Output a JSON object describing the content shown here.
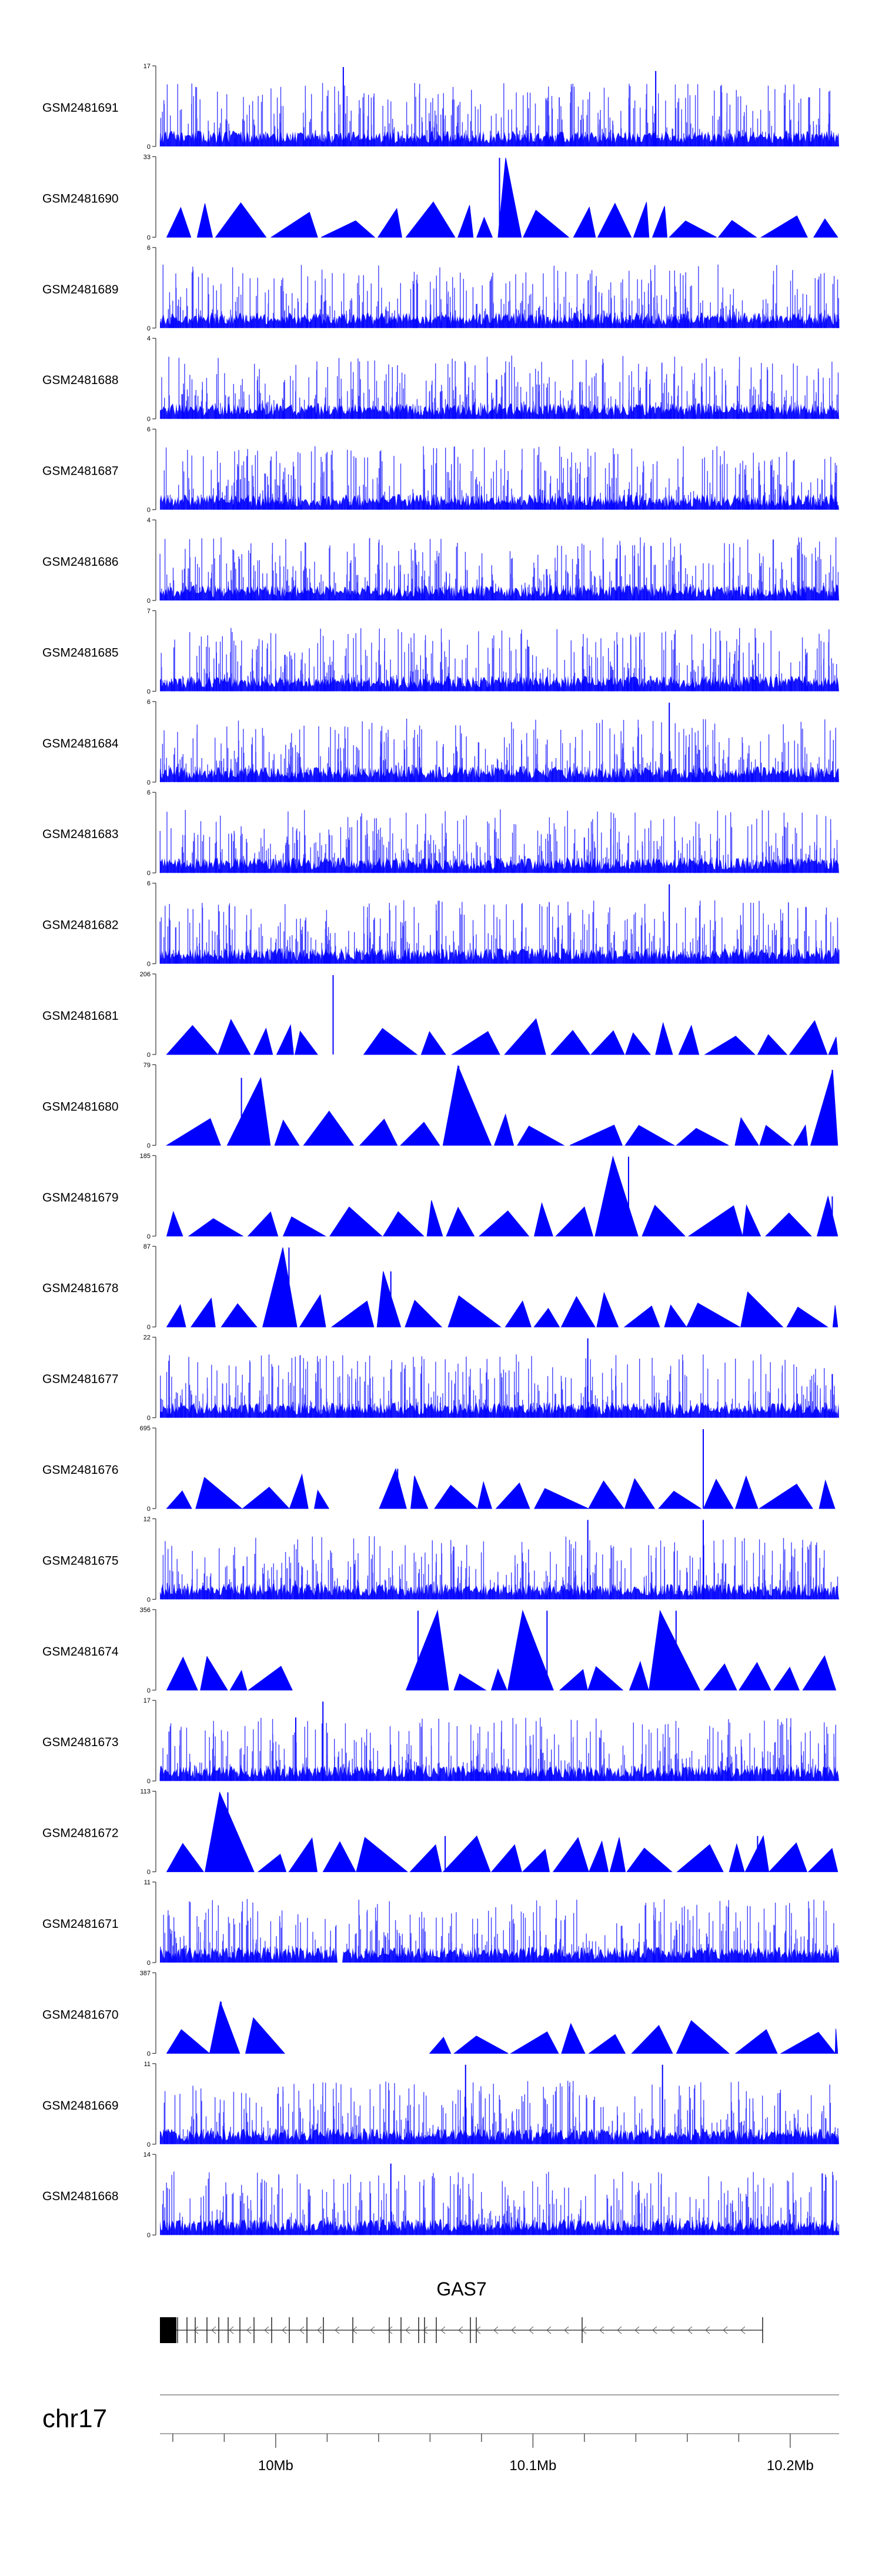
{
  "colors": {
    "signal": "#0000ff",
    "axis": "#333333",
    "gene": "#222222"
  },
  "chart_data": {
    "type": "area",
    "chromosome": "chr17",
    "gene": {
      "name": "GAS7",
      "strand": "-"
    },
    "x_ticks": [
      {
        "label": "",
        "value": 9.96
      },
      {
        "label": "",
        "value": 9.98
      },
      {
        "label": "10Mb",
        "value": 10.0
      },
      {
        "label": "",
        "value": 10.02
      },
      {
        "label": "",
        "value": 10.04
      },
      {
        "label": "",
        "value": 10.06
      },
      {
        "label": "",
        "value": 10.08
      },
      {
        "label": "10.1Mb",
        "value": 10.1
      },
      {
        "label": "",
        "value": 10.12
      },
      {
        "label": "",
        "value": 10.14
      },
      {
        "label": "",
        "value": 10.16
      },
      {
        "label": "",
        "value": 10.18
      },
      {
        "label": "10.2Mb",
        "value": 10.2
      },
      {
        "label": "",
        "value": 10.22
      }
    ],
    "xlim": [
      9.955,
      10.219
    ],
    "tracks": [
      {
        "name": "GSM2481691",
        "ymax": 17,
        "style": "dense",
        "seed": 11,
        "peaks": [
          [
            0.27,
            1.0
          ],
          [
            0.73,
            0.95
          ]
        ]
      },
      {
        "name": "GSM2481690",
        "ymax": 33,
        "style": "tri",
        "seed": 12,
        "gaps": [
          [
            0.26,
            0.3
          ]
        ],
        "peaks": [
          [
            0.5,
            1.0
          ]
        ]
      },
      {
        "name": "GSM2481689",
        "ymax": 6,
        "style": "dense",
        "seed": 13,
        "peaks": []
      },
      {
        "name": "GSM2481688",
        "ymax": 4,
        "style": "dense",
        "seed": 14,
        "peaks": []
      },
      {
        "name": "GSM2481687",
        "ymax": 6,
        "style": "dense",
        "seed": 15,
        "peaks": []
      },
      {
        "name": "GSM2481686",
        "ymax": 4,
        "style": "dense",
        "seed": 16,
        "peaks": []
      },
      {
        "name": "GSM2481685",
        "ymax": 7,
        "style": "dense",
        "seed": 17,
        "peaks": []
      },
      {
        "name": "GSM2481684",
        "ymax": 6,
        "style": "dense",
        "seed": 18,
        "peaks": [
          [
            0.75,
            1.0
          ]
        ]
      },
      {
        "name": "GSM2481683",
        "ymax": 6,
        "style": "dense",
        "seed": 19,
        "peaks": []
      },
      {
        "name": "GSM2481682",
        "ymax": 6,
        "style": "dense",
        "seed": 20,
        "peaks": [
          [
            0.75,
            1.0
          ]
        ]
      },
      {
        "name": "GSM2481681",
        "ymax": 206,
        "style": "tri",
        "seed": 21,
        "gaps": [
          [
            0.26,
            0.3
          ]
        ],
        "peaks": [
          [
            0.255,
            1.0
          ]
        ]
      },
      {
        "name": "GSM2481680",
        "ymax": 79,
        "style": "tri",
        "seed": 22,
        "gaps": [],
        "peaks": [
          [
            0.12,
            0.85
          ],
          [
            0.44,
            1.0
          ],
          [
            0.99,
            0.95
          ]
        ]
      },
      {
        "name": "GSM2481679",
        "ymax": 185,
        "style": "tri",
        "seed": 23,
        "gaps": [],
        "peaks": [
          [
            0.69,
            1.0
          ],
          [
            0.99,
            0.5
          ]
        ]
      },
      {
        "name": "GSM2481678",
        "ymax": 87,
        "style": "tri",
        "seed": 24,
        "gaps": [],
        "peaks": [
          [
            0.19,
            1.0
          ],
          [
            0.34,
            0.7
          ]
        ]
      },
      {
        "name": "GSM2481677",
        "ymax": 22,
        "style": "dense",
        "seed": 25,
        "peaks": [
          [
            0.63,
            1.0
          ],
          [
            0.99,
            0.55
          ]
        ]
      },
      {
        "name": "GSM2481676",
        "ymax": 695,
        "style": "tri",
        "seed": 26,
        "gaps": [
          [
            0.27,
            0.32
          ]
        ],
        "peaks": [
          [
            0.35,
            0.5
          ],
          [
            0.8,
            1.0
          ]
        ]
      },
      {
        "name": "GSM2481675",
        "ymax": 12,
        "style": "dense",
        "seed": 27,
        "peaks": [
          [
            0.63,
            1.0
          ],
          [
            0.8,
            1.0
          ]
        ]
      },
      {
        "name": "GSM2481674",
        "ymax": 356,
        "style": "tri",
        "seed": 28,
        "gaps": [
          [
            0.24,
            0.34
          ]
        ],
        "peaks": [
          [
            0.38,
            1.0
          ],
          [
            0.57,
            1.0
          ],
          [
            0.76,
            1.0
          ]
        ]
      },
      {
        "name": "GSM2481673",
        "ymax": 17,
        "style": "dense",
        "seed": 29,
        "peaks": [
          [
            0.24,
            1.0
          ],
          [
            0.2,
            0.8
          ]
        ]
      },
      {
        "name": "GSM2481672",
        "ymax": 113,
        "style": "tri",
        "seed": 30,
        "gaps": [],
        "peaks": [
          [
            0.1,
            1.0
          ],
          [
            0.42,
            0.45
          ],
          [
            0.88,
            0.45
          ]
        ]
      },
      {
        "name": "GSM2481671",
        "ymax": 11,
        "style": "dense",
        "seed": 31,
        "gaps": [
          [
            0.26,
            0.27
          ]
        ],
        "peaks": []
      },
      {
        "name": "GSM2481670",
        "ymax": 387,
        "style": "tri",
        "seed": 32,
        "gaps": [
          [
            0.2,
            0.36
          ],
          [
            0.72,
            0.73
          ]
        ],
        "peaks": [
          [
            0.09,
            0.65
          ]
        ]
      },
      {
        "name": "GSM2481669",
        "ymax": 11,
        "style": "dense",
        "seed": 33,
        "peaks": [
          [
            0.45,
            1.0
          ],
          [
            0.74,
            1.0
          ]
        ]
      },
      {
        "name": "GSM2481668",
        "ymax": 14,
        "style": "dense",
        "seed": 34,
        "peaks": [
          [
            0.34,
            0.9
          ]
        ]
      }
    ]
  }
}
